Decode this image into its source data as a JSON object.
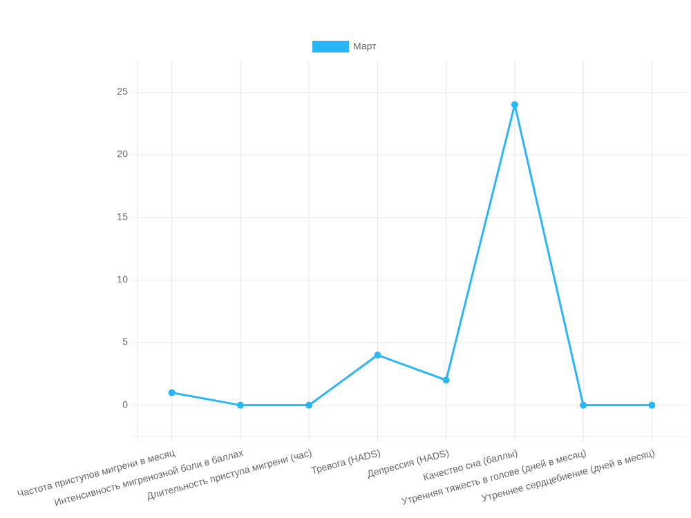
{
  "chart_data": {
    "type": "line",
    "categories": [
      "Частота приступов мигрени в месяц",
      "Интенсивность мигренозной боли в баллах",
      "Длительность приступа мигрени (час)",
      "Тревога (HADS)",
      "Депрессия (HADS)",
      "Качество сна (баллы)",
      "Утренняя тяжесть в голове (дней в месяц)",
      "Утреннее сердцебиение (дней в месяц)"
    ],
    "series": [
      {
        "name": "Март",
        "color": "#29b6f6",
        "values": [
          1,
          0,
          0,
          4,
          2,
          24,
          0,
          0
        ]
      }
    ],
    "ylim": [
      -2.5,
      27.5
    ],
    "yticks": [
      0,
      5,
      10,
      15,
      20,
      25
    ],
    "grid": true,
    "legend": "top"
  }
}
